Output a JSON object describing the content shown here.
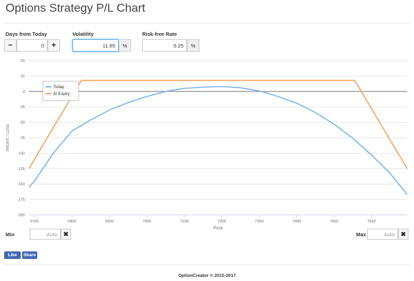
{
  "header": {
    "title": "Options Strategy P/L Chart"
  },
  "controls": {
    "days": {
      "label": "Days from Today",
      "value": "0"
    },
    "volatility": {
      "label": "Volatility",
      "value": "11.65",
      "unit": "%"
    },
    "rate": {
      "label": "Risk-free Rate",
      "value": "0.25",
      "unit": "%"
    },
    "min": {
      "label": "Min",
      "placeholder": "Auto"
    },
    "max": {
      "label": "Max",
      "placeholder": "Auto"
    }
  },
  "social": {
    "like": "Like",
    "share": "Share"
  },
  "footer": {
    "text": "OptionCreator © 2015-2017"
  },
  "chart_data": {
    "type": "line",
    "xlabel": "Price",
    "ylabel": "PROFIT / LOSS",
    "xlim": [
      6685,
      7695
    ],
    "ylim": [
      -200,
      50
    ],
    "xticks": [
      6700,
      6800,
      6900,
      7000,
      7100,
      7200,
      7300,
      7400,
      7500,
      7600
    ],
    "yticks": [
      -200,
      -175,
      -150,
      -125,
      -100,
      -75,
      -50,
      -25,
      0,
      25,
      50
    ],
    "grid": true,
    "legend": "upper left",
    "series": [
      {
        "name": "Today",
        "color": "#7cb5ec",
        "x": [
          6685,
          6700,
          6750,
          6800,
          6850,
          6900,
          6950,
          7000,
          7050,
          7100,
          7150,
          7200,
          7250,
          7300,
          7350,
          7400,
          7450,
          7500,
          7550,
          7600,
          7650,
          7695
        ],
        "values": [
          -155,
          -145,
          -100,
          -64,
          -46,
          -30,
          -18,
          -8,
          0,
          5,
          7,
          8,
          6,
          1,
          -8,
          -19,
          -34,
          -53,
          -76,
          -103,
          -133,
          -167
        ]
      },
      {
        "name": "At Expiry",
        "color": "#f7a35c",
        "x": [
          6685,
          6825,
          7555,
          7695
        ],
        "values": [
          -125,
          18,
          18,
          -125
        ]
      }
    ]
  }
}
